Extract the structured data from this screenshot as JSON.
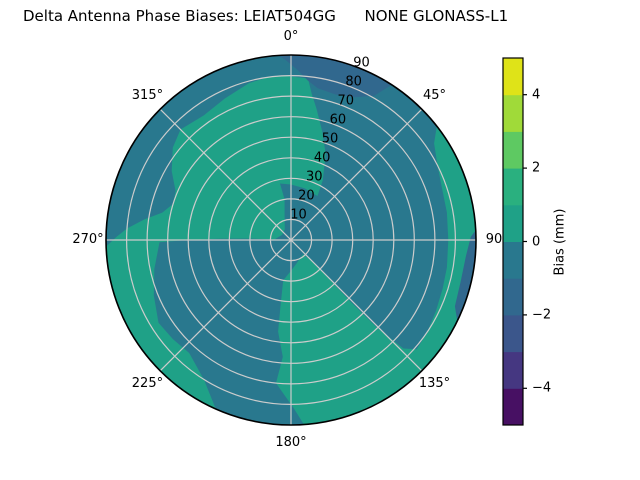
{
  "title": "Delta Antenna Phase Biases: LEIAT504GG      NONE GLONASS-L1",
  "chart_data": {
    "type": "polar_contour_filled",
    "title": "Delta Antenna Phase Biases: LEIAT504GG      NONE GLONASS-L1",
    "angular_ticks": [
      {
        "label": "0°",
        "az": 0
      },
      {
        "label": "45°",
        "az": 45
      },
      {
        "label": "90",
        "az": 90
      },
      {
        "label": "135°",
        "az": 135
      },
      {
        "label": "180°",
        "az": 180
      },
      {
        "label": "225°",
        "az": 225
      },
      {
        "label": "270°",
        "az": 270
      },
      {
        "label": "315°",
        "az": 315
      }
    ],
    "radial_ticks": [
      "10",
      "20",
      "30",
      "40",
      "50",
      "60",
      "70",
      "80",
      "90"
    ],
    "radial_axis": {
      "min": 0,
      "max": 90,
      "tick_step": 10
    },
    "grid": {
      "on": true,
      "color": "#cccccc",
      "spoke_step_deg": 45
    },
    "colorbar": {
      "label": "Bias (mm)",
      "ticks": [
        {
          "label": "4",
          "value": 4
        },
        {
          "label": "2",
          "value": 2
        },
        {
          "label": "0",
          "value": 0
        },
        {
          "label": "−2",
          "value": -2
        },
        {
          "label": "−4",
          "value": -4
        }
      ],
      "range": [
        -5,
        5
      ],
      "levels": [
        -5,
        -4,
        -3,
        -2,
        -1,
        0,
        1,
        2,
        3,
        4,
        5
      ],
      "band_colors_bottom_to_top": [
        "#471063",
        "#453781",
        "#3b568b",
        "#31688e",
        "#29788e",
        "#1fa187",
        "#2ab07f",
        "#5ec962",
        "#a0da39",
        "#dfe318"
      ]
    },
    "regions": [
      {
        "name": "base-field",
        "band": "0 to 1 mm",
        "color": "#1fa187",
        "shape": "full-disk"
      },
      {
        "name": "negative-band-main",
        "band": "-1 to 0 mm",
        "color": "#29788e",
        "points": [
          [
            268,
            90
          ],
          [
            276,
            90
          ],
          [
            284,
            90
          ],
          [
            292,
            90
          ],
          [
            300,
            90
          ],
          [
            308,
            90
          ],
          [
            316,
            90
          ],
          [
            324,
            90
          ],
          [
            332,
            90
          ],
          [
            340,
            90
          ],
          [
            348,
            90
          ],
          [
            356,
            90
          ],
          [
            364,
            90
          ],
          [
            372,
            90
          ],
          [
            380,
            90
          ],
          [
            388,
            90
          ],
          [
            396,
            90
          ],
          [
            404,
            90
          ],
          [
            412,
            90
          ],
          [
            56,
            84
          ],
          [
            63,
            80
          ],
          [
            72,
            77.5
          ],
          [
            80,
            77
          ],
          [
            90,
            76.5
          ],
          [
            100,
            77
          ],
          [
            108,
            77.5
          ],
          [
            116,
            78.5
          ],
          [
            124,
            80
          ],
          [
            131,
            81
          ],
          [
            134,
            76
          ],
          [
            135.5,
            60
          ],
          [
            136,
            42
          ],
          [
            135.5,
            25
          ],
          [
            136,
            13
          ],
          [
            140,
            9
          ],
          [
            155,
            10
          ],
          [
            168,
            12
          ],
          [
            180,
            15
          ],
          [
            191,
            20
          ],
          [
            189,
            33
          ],
          [
            188,
            45
          ],
          [
            184,
            57
          ],
          [
            186,
            70
          ],
          [
            179,
            82
          ],
          [
            176,
            90
          ],
          [
            183,
            90
          ],
          [
            190,
            90
          ],
          [
            197,
            90
          ],
          [
            204,
            90
          ],
          [
            212,
            80
          ],
          [
            222,
            74
          ],
          [
            230,
            75
          ],
          [
            238,
            76
          ],
          [
            248,
            72
          ],
          [
            258,
            68
          ],
          [
            269,
            64
          ],
          [
            270,
            50
          ],
          [
            271,
            35
          ],
          [
            272,
            20
          ],
          [
            272,
            8
          ],
          [
            300,
            5
          ],
          [
            330,
            6
          ],
          [
            345,
            12
          ],
          [
            351,
            20
          ],
          [
            349,
            28
          ],
          [
            360,
            27
          ],
          [
            375,
            26
          ],
          [
            385,
            25
          ],
          [
            391,
            25
          ],
          [
            388,
            33
          ],
          [
            382,
            45
          ],
          [
            376,
            55
          ],
          [
            371,
            65
          ],
          [
            368,
            72
          ],
          [
            366,
            79
          ],
          [
            358,
            80
          ],
          [
            352,
            80
          ],
          [
            345,
            79
          ],
          [
            335,
            76
          ],
          [
            325,
            74
          ],
          [
            315,
            76
          ],
          [
            308,
            73
          ],
          [
            300,
            67
          ],
          [
            293,
            61
          ],
          [
            287,
            60
          ],
          [
            282,
            64
          ],
          [
            278,
            72
          ],
          [
            274,
            80
          ],
          [
            271,
            85
          ]
        ]
      },
      {
        "name": "negative-band-top-rim",
        "band": "-2 to -1 mm",
        "color": "#31688e",
        "points": [
          [
            356,
            90
          ],
          [
            364,
            90
          ],
          [
            372,
            90
          ],
          [
            380,
            90
          ],
          [
            388,
            90
          ],
          [
            393,
            90
          ],
          [
            390,
            81
          ],
          [
            384,
            76
          ],
          [
            377,
            74
          ],
          [
            370,
            75
          ],
          [
            366,
            78
          ],
          [
            362,
            83
          ],
          [
            358,
            88
          ]
        ]
      },
      {
        "name": "negative-band-right-rim",
        "band": "-2 to -1 mm",
        "color": "#31688e",
        "points": [
          [
            87,
            90
          ],
          [
            95,
            90
          ],
          [
            105,
            90
          ],
          [
            116,
            90
          ],
          [
            112,
            86
          ],
          [
            104,
            85
          ],
          [
            95,
            85.5
          ],
          [
            89,
            87.5
          ]
        ]
      }
    ]
  }
}
